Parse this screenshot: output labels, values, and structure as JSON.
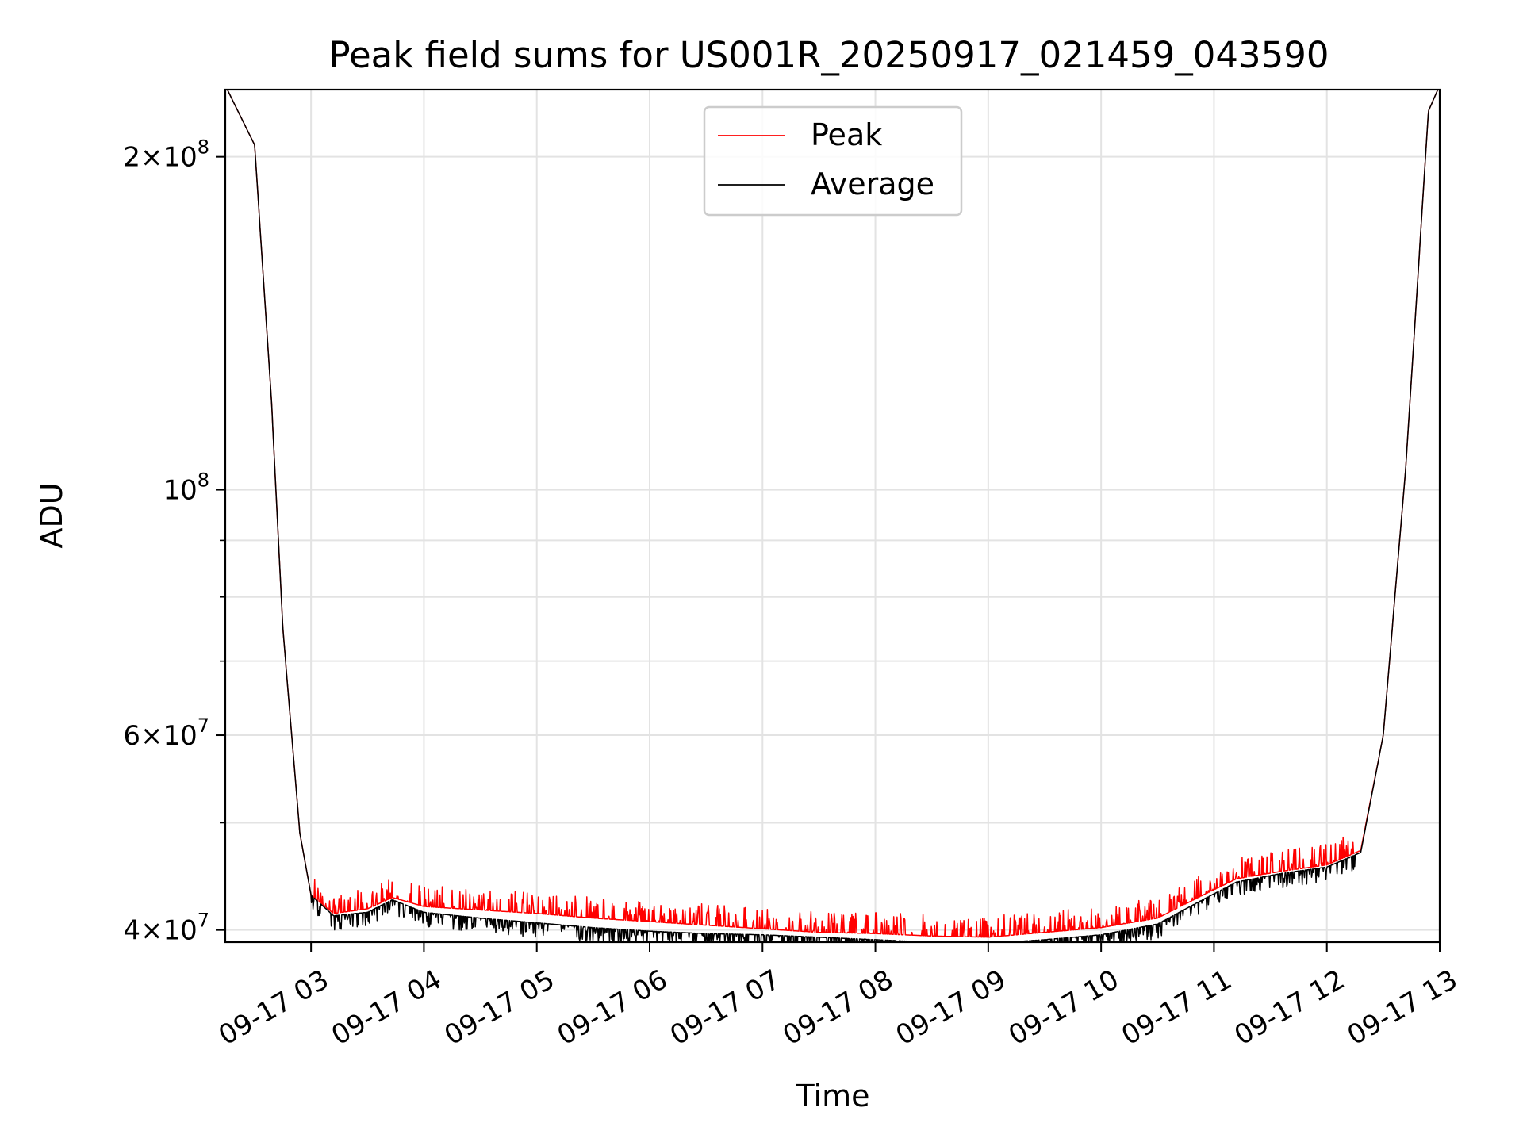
{
  "chart_data": {
    "type": "line",
    "title": "Peak field sums for US001R_20250917_021459_043590",
    "xlabel": "Time",
    "ylabel": "ADU",
    "yscale": "log",
    "xlim": [
      2.24,
      13.0
    ],
    "ylim": [
      39000000.0,
      230000000.0
    ],
    "grid": true,
    "legend_location": "upper-center",
    "x_unit": "hours since 2025-09-17 00:00",
    "x_ticks": [
      {
        "value": 3,
        "label": "09-17 03"
      },
      {
        "value": 4,
        "label": "09-17 04"
      },
      {
        "value": 5,
        "label": "09-17 05"
      },
      {
        "value": 6,
        "label": "09-17 06"
      },
      {
        "value": 7,
        "label": "09-17 07"
      },
      {
        "value": 8,
        "label": "09-17 08"
      },
      {
        "value": 9,
        "label": "09-17 09"
      },
      {
        "value": 10,
        "label": "09-17 10"
      },
      {
        "value": 11,
        "label": "09-17 11"
      },
      {
        "value": 12,
        "label": "09-17 12"
      },
      {
        "value": 13,
        "label": "09-17 13"
      }
    ],
    "y_major_ticks": [
      {
        "value": 40000000,
        "mantissa": "4",
        "exponent": "7"
      },
      {
        "value": 60000000,
        "mantissa": "6",
        "exponent": "7"
      },
      {
        "value": 100000000,
        "mantissa": "",
        "exponent": "8"
      },
      {
        "value": 200000000,
        "mantissa": "2",
        "exponent": "8"
      }
    ],
    "y_minor_ticks": [
      50000000,
      70000000,
      80000000,
      90000000
    ],
    "series": [
      {
        "name": "Peak",
        "color": "#ff0000",
        "style": "noisy-upward-spikes",
        "x": [
          2.24,
          2.5,
          2.65,
          2.75,
          2.9,
          3.0,
          3.2,
          3.5,
          3.72,
          4.0,
          4.5,
          5.0,
          5.5,
          6.0,
          6.5,
          7.0,
          7.5,
          8.0,
          8.5,
          9.0,
          9.5,
          10.0,
          10.5,
          10.9,
          11.2,
          11.6,
          12.0,
          12.3,
          12.5,
          12.7,
          12.9,
          13.0
        ],
        "y": [
          232000000.0,
          205000000.0,
          120000000.0,
          75000000.0,
          49000000.0,
          43000000.0,
          41400000.0,
          41800000.0,
          42800000.0,
          42000000.0,
          41700000.0,
          41400000.0,
          41000000.0,
          40700000.0,
          40400000.0,
          40100000.0,
          39800000.0,
          39700000.0,
          39500000.0,
          39400000.0,
          39800000.0,
          40200000.0,
          41000000.0,
          43000000.0,
          44500000.0,
          45200000.0,
          45800000.0,
          47200000.0,
          60000000.0,
          105000000.0,
          220000000.0,
          232000000.0
        ]
      },
      {
        "name": "Average",
        "color": "#000000",
        "style": "noisy-downward-dips",
        "x": [
          2.24,
          2.5,
          2.65,
          2.75,
          2.9,
          3.0,
          3.2,
          3.5,
          3.72,
          4.0,
          4.5,
          5.0,
          5.5,
          6.0,
          6.5,
          7.0,
          7.5,
          8.0,
          8.5,
          9.0,
          9.5,
          10.0,
          10.5,
          10.9,
          11.2,
          11.6,
          12.0,
          12.3,
          12.5,
          12.7,
          12.9,
          13.0
        ],
        "y": [
          232000000.0,
          205000000.0,
          120000000.0,
          75000000.0,
          49000000.0,
          43000000.0,
          41200000.0,
          41500000.0,
          42600000.0,
          41500000.0,
          41000000.0,
          40600000.0,
          40200000.0,
          39900000.0,
          39700000.0,
          39600000.0,
          39400000.0,
          39200000.0,
          39000000.0,
          38900000.0,
          39200000.0,
          39600000.0,
          40500000.0,
          42600000.0,
          44200000.0,
          45000000.0,
          45600000.0,
          47000000.0,
          60000000.0,
          105000000.0,
          220000000.0,
          232000000.0
        ]
      }
    ]
  }
}
